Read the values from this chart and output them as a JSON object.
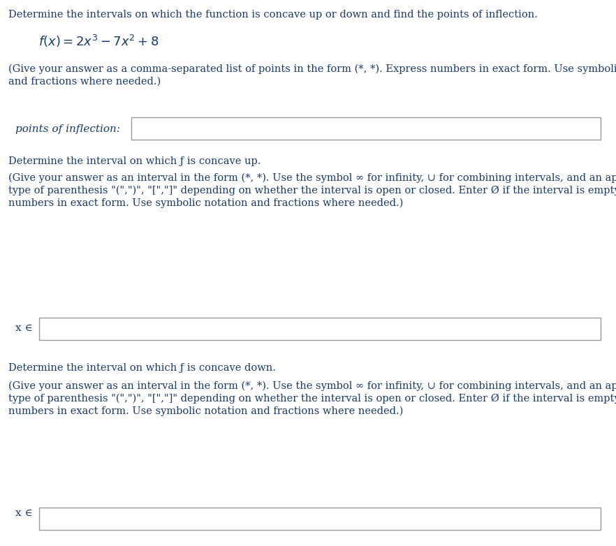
{
  "bg_color": "#ffffff",
  "text_color": "#1a3a6b",
  "title_text": "Determine the intervals on which the function is concave up or down and find the points of inflection.",
  "instruction1_line1": "(Give your answer as a comma-separated list of points in the form (*, *). Express numbers in exact form. Use symbolic notation",
  "instruction1_line2": "and fractions where needed.)",
  "label1": "points of inflection:",
  "section2_title": "Determine the interval on which ƒ is concave up.",
  "instruction2_line1": "(Give your answer as an interval in the form (*, *). Use the symbol ∞ for infinity, ∪ for combining intervals, and an appropriate",
  "instruction2_line2": "type of parenthesis \"(\",\")\", \"[\",\"]\" depending on whether the interval is open or closed. Enter Ø if the interval is empty. Express",
  "instruction2_line3": "numbers in exact form. Use symbolic notation and fractions where needed.)",
  "label2": "x ∈",
  "section3_title": "Determine the interval on which ƒ is concave down.",
  "instruction3_line1": "(Give your answer as an interval in the form (*, *). Use the symbol ∞ for infinity, ∪ for combining intervals, and an appropriate",
  "instruction3_line2": "type of parenthesis \"(\",\")\", \"[\",\"]\" depending on whether the interval is open or closed. Enter Ø if the interval is empty. Express",
  "instruction3_line3": "numbers in exact form. Use symbolic notation and fractions where needed.)",
  "label3": "x ∈",
  "box_edge_color": "#999999",
  "font_size_title": 10.5,
  "font_size_function": 13.0,
  "font_size_body": 10.5,
  "font_size_label": 11.0,
  "fig_width": 8.82,
  "fig_height": 7.82,
  "dpi": 100
}
